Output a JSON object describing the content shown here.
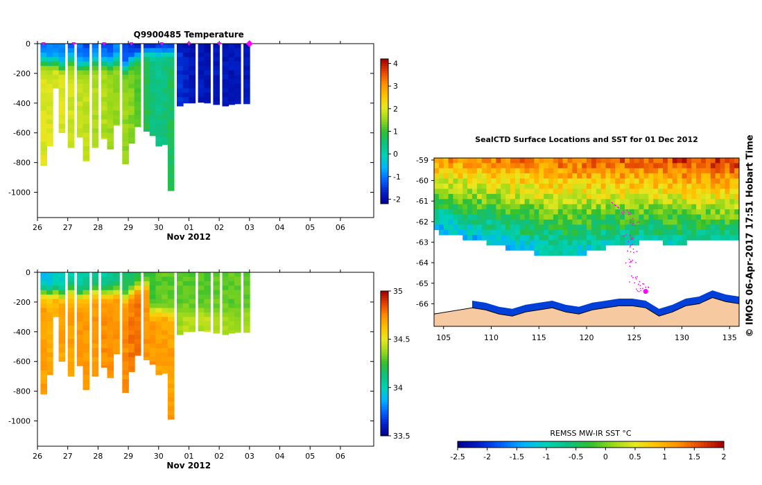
{
  "colors": {
    "cmap": [
      "#00008b",
      "#0020c8",
      "#0064ff",
      "#00b4ff",
      "#00d2b4",
      "#10c080",
      "#30c030",
      "#9ad81a",
      "#e8e820",
      "#ffc000",
      "#ff8c00",
      "#e04000",
      "#a00000"
    ],
    "land": "#f7c9a0",
    "ice": "#ffffff",
    "marker": "#ff00ff",
    "axis": "#000000"
  },
  "chart_data": [
    {
      "id": "temperature-section",
      "type": "heatmap",
      "title": "Q9900485  Temperature",
      "xlabel": "Nov 2012",
      "ylabel": "",
      "x_ticks": [
        "26",
        "27",
        "28",
        "29",
        "30",
        "01",
        "02",
        "03",
        "04",
        "05",
        "06"
      ],
      "xlim": [
        26,
        37.1
      ],
      "ylim": [
        -1170,
        0
      ],
      "y_ticks": [
        0,
        -200,
        -400,
        -600,
        -800,
        -1000
      ],
      "colorbar": {
        "min": -2.2,
        "max": 4.2,
        "ticks": [
          4,
          3,
          2,
          1,
          0,
          -1,
          -2
        ]
      },
      "profile_days": [
        26.2,
        26.4,
        26.6,
        26.8,
        27.1,
        27.4,
        27.6,
        27.9,
        28.2,
        28.4,
        28.6,
        28.9,
        29.1,
        29.3,
        29.6,
        29.8,
        30.0,
        30.2,
        30.4,
        30.7,
        30.9,
        31.1,
        31.4,
        31.6,
        31.9,
        32.2,
        32.4,
        32.6,
        32.9
      ],
      "profile_max_depth": [
        820,
        690,
        300,
        600,
        700,
        630,
        790,
        700,
        640,
        710,
        550,
        810,
        670,
        560,
        590,
        620,
        690,
        680,
        990,
        420,
        400,
        400,
        395,
        400,
        410,
        420,
        410,
        405,
        405
      ],
      "surface_value": [
        -1.0,
        -1.0,
        -1.1,
        -1.0,
        -1.2,
        -1.1,
        -1.3,
        -1.1,
        -1.2,
        -1.2,
        -1.0,
        -1.4,
        -1.5,
        -1.7,
        -1.9,
        -2.0,
        -1.9,
        -1.9,
        -2.0,
        -1.9,
        -1.9,
        -1.9,
        -1.9,
        -1.9,
        -1.9,
        -1.9,
        -1.9,
        -1.9,
        -1.8
      ],
      "deep_value": [
        2.0,
        2.0,
        2.0,
        2.0,
        1.9,
        1.8,
        1.8,
        1.7,
        1.7,
        1.6,
        1.5,
        1.5,
        1.4,
        1.2,
        0.8,
        0.5,
        0.4,
        0.5,
        0.7,
        -1.5,
        -1.7,
        -1.8,
        -1.8,
        -1.8,
        -1.8,
        -1.8,
        -1.8,
        -1.8,
        -1.8
      ],
      "cline_depth": [
        120,
        130,
        120,
        150,
        110,
        150,
        140,
        120,
        130,
        140,
        110,
        160,
        120,
        90,
        60,
        50,
        50,
        50,
        50,
        40,
        40,
        40,
        40,
        40,
        40,
        40,
        40,
        40,
        40
      ],
      "surface_markers": [
        26.2,
        27.2,
        28.2,
        29.1,
        30.1,
        31.0,
        32.0,
        33.0
      ],
      "highlight_marker": 33.0
    },
    {
      "id": "salinity-section",
      "type": "heatmap",
      "title": "",
      "xlabel": "Nov 2012",
      "ylabel": "",
      "x_ticks": [
        "26",
        "27",
        "28",
        "29",
        "30",
        "01",
        "02",
        "03",
        "04",
        "05",
        "06"
      ],
      "xlim": [
        26,
        37.1
      ],
      "ylim": [
        -1170,
        0
      ],
      "y_ticks": [
        0,
        -200,
        -400,
        -600,
        -800,
        -1000
      ],
      "colorbar": {
        "min": 33.5,
        "max": 35.0,
        "ticks": [
          "35",
          "34.5",
          "34",
          "33.5"
        ]
      },
      "surface_value": [
        33.9,
        33.9,
        33.95,
        33.95,
        34.0,
        34.0,
        34.05,
        34.05,
        34.05,
        34.1,
        34.1,
        34.15,
        34.15,
        34.2,
        34.2,
        34.25,
        34.3,
        34.3,
        34.3,
        34.3,
        34.3,
        34.3,
        34.3,
        34.3,
        34.3,
        34.3,
        34.3,
        34.3,
        34.3
      ],
      "deep_value": [
        34.7,
        34.68,
        34.68,
        34.7,
        34.7,
        34.72,
        34.72,
        34.72,
        34.74,
        34.74,
        34.72,
        34.74,
        34.78,
        34.8,
        34.72,
        34.72,
        34.7,
        34.7,
        34.7,
        34.4,
        34.42,
        34.42,
        34.42,
        34.45,
        34.42,
        34.4,
        34.4,
        34.38,
        34.38
      ],
      "cline_depth": [
        130,
        140,
        130,
        150,
        120,
        150,
        140,
        120,
        140,
        140,
        120,
        160,
        130,
        100,
        80,
        260,
        260,
        260,
        280,
        260,
        260,
        260,
        260,
        260,
        260,
        260,
        260,
        260,
        260
      ]
    },
    {
      "id": "sst-map",
      "type": "heatmap",
      "title": "SealCTD Surface Locations and SST for 01 Dec 2012",
      "xlabel": "",
      "ylabel": "",
      "xlim": [
        104,
        136
      ],
      "ylim": [
        -67.1,
        -58.9
      ],
      "x_ticks": [
        "105",
        "110",
        "115",
        "120",
        "125",
        "130",
        "135"
      ],
      "y_ticks": [
        "-59",
        "-60",
        "-61",
        "-62",
        "-63",
        "-64",
        "-65",
        "-66"
      ],
      "colorbar": {
        "title": "REMSS MW-IR SST °C",
        "min": -2.5,
        "max": 2.0,
        "ticks": [
          "-2.5",
          "-2",
          "-1.5",
          "-1",
          "-0.5",
          "0",
          "0.5",
          "1",
          "1.5",
          "2"
        ]
      },
      "ice_edge_lat": [
        -62.5,
        -62.6,
        -62.8,
        -63.0,
        -63.2,
        -63.4,
        -63.5,
        -63.6,
        -63.7,
        -63.6,
        -63.4,
        -63.2,
        -63.1,
        -63.0,
        -63.0,
        -63.1,
        -63.0,
        -62.9,
        -62.9,
        -62.8
      ],
      "coast_lat": [
        -66.2,
        -66.3,
        -66.5,
        -66.6,
        -66.4,
        -66.3,
        -66.2,
        -66.4,
        -66.5,
        -66.3,
        -66.2,
        -66.1,
        -66.1,
        -66.2,
        -66.6,
        -66.4,
        -66.1,
        -66.0,
        -65.7,
        -65.9,
        -66.0
      ],
      "track_points": [
        [
          123.0,
          -61.2
        ],
        [
          124.0,
          -61.6
        ],
        [
          125.0,
          -62.0
        ],
        [
          124.4,
          -62.8
        ],
        [
          124.8,
          -63.3
        ],
        [
          124.6,
          -64.0
        ],
        [
          125.0,
          -64.8
        ],
        [
          125.5,
          -65.2
        ],
        [
          126.0,
          -65.3
        ]
      ],
      "highlight_point": [
        126.2,
        -65.4
      ]
    }
  ],
  "credit": "©  IMOS 06-Apr-2017 17:51 Hobart Time"
}
